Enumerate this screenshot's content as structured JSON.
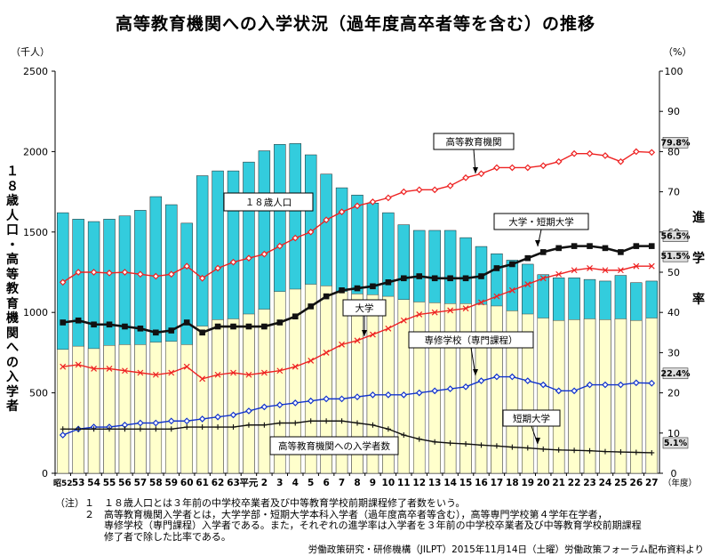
{
  "title": "高等教育機関への入学状況（過年度高卒者等を含む）の推移",
  "left_unit": "（千人）",
  "right_unit": "（%）",
  "year_unit": "（年度）",
  "left_vertical_label": "１８歳人口・高等教育機関への入学者",
  "right_vertical_label": "進学率",
  "notes": [
    "（注）１　１８歳人口とは３年前の中学校卒業者及び中等教育学校前期課程修了者数をいう。",
    "　　　２　高等教育機関入学者とは，大学学部・短期大学本科入学者（過年度高卒者等含む），高等専門学校第４学年在学者，",
    "　　　　　専修学校（専門課程）入学者である。また，それぞれの進学率は入学者を３年前の中学校卒業者及び中等教育学校前期課程",
    "　　　　　修了者で除した比率である。"
  ],
  "source": "労働政策研究・研修機構（JILPT）2015年11月14日（土曜）労働政策フォーラム配布資料より",
  "chart_data": {
    "type": "bar",
    "categories": [
      "昭52",
      "53",
      "54",
      "55",
      "56",
      "57",
      "58",
      "59",
      "60",
      "61",
      "62",
      "63",
      "平元",
      "2",
      "3",
      "4",
      "5",
      "6",
      "7",
      "8",
      "9",
      "10",
      "11",
      "12",
      "13",
      "14",
      "15",
      "16",
      "17",
      "18",
      "19",
      "20",
      "21",
      "22",
      "23",
      "24",
      "25",
      "26",
      "27"
    ],
    "x_tick_labels": [
      "昭52",
      "53",
      "54",
      "55",
      "56",
      "57",
      "58",
      "59",
      "60",
      "61",
      "62",
      "63",
      "平元",
      "2",
      "3",
      "4",
      "5",
      "6",
      "7",
      "8",
      "9",
      "10",
      "11",
      "12",
      "13",
      "14",
      "15",
      "16",
      "17",
      "18",
      "19",
      "20",
      "21",
      "22",
      "23",
      "24",
      "25",
      "26",
      "27"
    ],
    "y_left": {
      "ylim": [
        0,
        2500
      ],
      "ticks": [
        0,
        500,
        1000,
        1500,
        2000,
        2500
      ]
    },
    "y_right": {
      "ylim": [
        0,
        100
      ],
      "ticks": [
        0,
        10,
        20,
        30,
        40,
        50,
        60,
        70,
        80,
        90,
        100
      ]
    },
    "grid": false,
    "series": [
      {
        "name": "１８歳人口",
        "kind": "bar",
        "axis": "left",
        "color": "#33ccdd",
        "values": [
          1620,
          1580,
          1565,
          1580,
          1600,
          1635,
          1720,
          1670,
          1555,
          1850,
          1880,
          1880,
          1935,
          2005,
          2045,
          2050,
          1980,
          1860,
          1775,
          1730,
          1680,
          1620,
          1545,
          1510,
          1510,
          1510,
          1465,
          1410,
          1365,
          1325,
          1300,
          1235,
          1215,
          1215,
          1205,
          1195,
          1230,
          1185,
          1195
        ]
      },
      {
        "name": "高等教育機関への入学者数",
        "kind": "bar",
        "axis": "left",
        "color": "#ffffcc",
        "values": [
          770,
          790,
          775,
          795,
          800,
          800,
          815,
          820,
          800,
          915,
          955,
          960,
          990,
          1020,
          1130,
          1145,
          1175,
          1165,
          1130,
          1115,
          1110,
          1100,
          1080,
          1065,
          1060,
          1055,
          1055,
          1050,
          1040,
          1010,
          990,
          965,
          950,
          955,
          960,
          955,
          960,
          950,
          965
        ]
      },
      {
        "name": "高等教育機関",
        "kind": "line",
        "axis": "right",
        "color": "#ee2222",
        "marker": "diamond",
        "values": [
          47.5,
          50.0,
          50.0,
          49.8,
          50.0,
          49.5,
          49.0,
          49.5,
          51.5,
          48.5,
          51.0,
          52.5,
          53.5,
          54.5,
          56.5,
          58.5,
          60.0,
          63.0,
          65.0,
          66.5,
          67.5,
          68.5,
          70.0,
          70.5,
          70.5,
          71.5,
          73.5,
          74.5,
          76.0,
          76.0,
          76.0,
          76.5,
          77.5,
          79.5,
          79.5,
          79.0,
          77.5,
          80.0,
          79.8
        ]
      },
      {
        "name": "大学・短期大学",
        "kind": "line",
        "axis": "right",
        "color": "#111111",
        "marker": "square",
        "values": [
          37.5,
          38.0,
          37.0,
          37.0,
          36.5,
          36.0,
          35.0,
          35.5,
          37.5,
          35.0,
          36.5,
          36.5,
          36.5,
          36.5,
          37.5,
          39.0,
          41.5,
          44.0,
          45.5,
          46.0,
          46.5,
          47.5,
          48.5,
          49.0,
          48.5,
          48.5,
          48.5,
          49.0,
          51.0,
          52.0,
          53.5,
          55.0,
          56.0,
          56.5,
          56.5,
          56.0,
          55.0,
          56.5,
          56.5
        ]
      },
      {
        "name": "大学",
        "kind": "line",
        "axis": "right",
        "color": "#ee2222",
        "marker": "x",
        "values": [
          26.5,
          27.0,
          26.0,
          26.0,
          25.5,
          25.0,
          24.5,
          25.0,
          26.5,
          23.5,
          24.5,
          25.0,
          24.5,
          25.0,
          25.5,
          26.5,
          28.0,
          30.0,
          32.0,
          33.0,
          34.5,
          36.0,
          38.0,
          39.5,
          40.0,
          40.5,
          41.0,
          42.5,
          44.0,
          45.5,
          47.0,
          48.5,
          49.5,
          50.5,
          51.0,
          50.5,
          50.5,
          51.5,
          51.5
        ]
      },
      {
        "name": "専修学校（専門課程）",
        "kind": "line",
        "axis": "right",
        "color": "#1133cc",
        "marker": "diamond",
        "values": [
          9.5,
          11.0,
          11.5,
          11.5,
          12.0,
          12.5,
          12.5,
          13.0,
          13.0,
          13.5,
          14.0,
          14.5,
          15.5,
          16.5,
          17.0,
          17.5,
          18.0,
          18.5,
          18.5,
          19.0,
          19.5,
          19.5,
          19.5,
          20.0,
          20.5,
          21.0,
          21.5,
          23.0,
          24.0,
          24.0,
          23.0,
          22.0,
          20.5,
          20.5,
          22.0,
          22.0,
          22.0,
          22.5,
          22.4
        ]
      },
      {
        "name": "短期大学",
        "kind": "line",
        "axis": "right",
        "color": "#111111",
        "marker": "plus",
        "values": [
          11.0,
          11.0,
          11.0,
          11.0,
          11.0,
          11.0,
          11.0,
          11.0,
          11.5,
          11.5,
          11.5,
          11.5,
          12.0,
          12.0,
          12.5,
          12.5,
          13.0,
          13.0,
          13.0,
          12.5,
          12.0,
          11.0,
          9.5,
          8.5,
          7.8,
          7.5,
          7.3,
          7.0,
          6.8,
          6.5,
          6.3,
          6.0,
          5.8,
          5.7,
          5.6,
          5.4,
          5.3,
          5.2,
          5.1
        ]
      }
    ],
    "annotations": [
      {
        "text": "高等教育機関",
        "series": "高等教育機関"
      },
      {
        "text": "大学・短期大学",
        "series": "大学・短期大学"
      },
      {
        "text": "大学",
        "series": "大学"
      },
      {
        "text": "専修学校（専門課程）",
        "series": "専修学校（専門課程）"
      },
      {
        "text": "短期大学",
        "series": "短期大学"
      },
      {
        "text": "１８歳人口",
        "series": "１８歳人口"
      },
      {
        "text": "高等教育機関への入学者数",
        "series": "高等教育機関への入学者数"
      }
    ],
    "end_value_labels": [
      "79.8%",
      "56.5%",
      "51.5%",
      "22.4%",
      "5.1%"
    ]
  }
}
